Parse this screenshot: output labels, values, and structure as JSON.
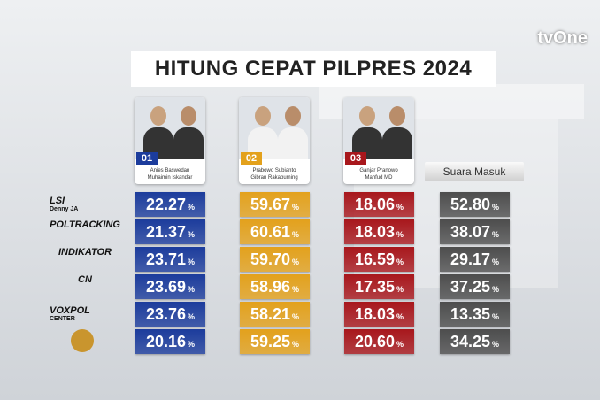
{
  "header": {
    "title": "HITUNG CEPAT PILPRES 2024",
    "channel": "tvOne"
  },
  "candidates": [
    {
      "number": "01",
      "names": [
        "Anies Baswedan",
        "Muhaimin Iskandar"
      ],
      "color": "#1c3c9c"
    },
    {
      "number": "02",
      "names": [
        "Prabowo Subianto",
        "Gibran Rakabuming"
      ],
      "color": "#e3a11c"
    },
    {
      "number": "03",
      "names": [
        "Ganjar Pranowo",
        "Mahfud MD"
      ],
      "color": "#a8171c"
    }
  ],
  "table": {
    "extra_column": "Suara Masuk",
    "unit": "%",
    "extra_color": "#4d4d4d",
    "rows": [
      {
        "logo": [
          "LSI",
          "Denny JA"
        ],
        "values": [
          "22.27",
          "59.67",
          "18.06",
          "52.80"
        ]
      },
      {
        "logo": [
          "POLTRACKING"
        ],
        "values": [
          "21.37",
          "60.61",
          "18.03",
          "38.07"
        ]
      },
      {
        "logo": [
          "INDIKATOR"
        ],
        "values": [
          "23.71",
          "59.70",
          "16.59",
          "29.17"
        ]
      },
      {
        "logo": [
          "CN"
        ],
        "values": [
          "23.69",
          "58.96",
          "17.35",
          "37.25"
        ]
      },
      {
        "logo": [
          "VOXPOL",
          "CENTER"
        ],
        "values": [
          "23.76",
          "58.21",
          "18.03",
          "13.35"
        ]
      },
      {
        "values": [
          "20.16",
          "59.25",
          "20.60",
          "34.25"
        ]
      }
    ]
  }
}
